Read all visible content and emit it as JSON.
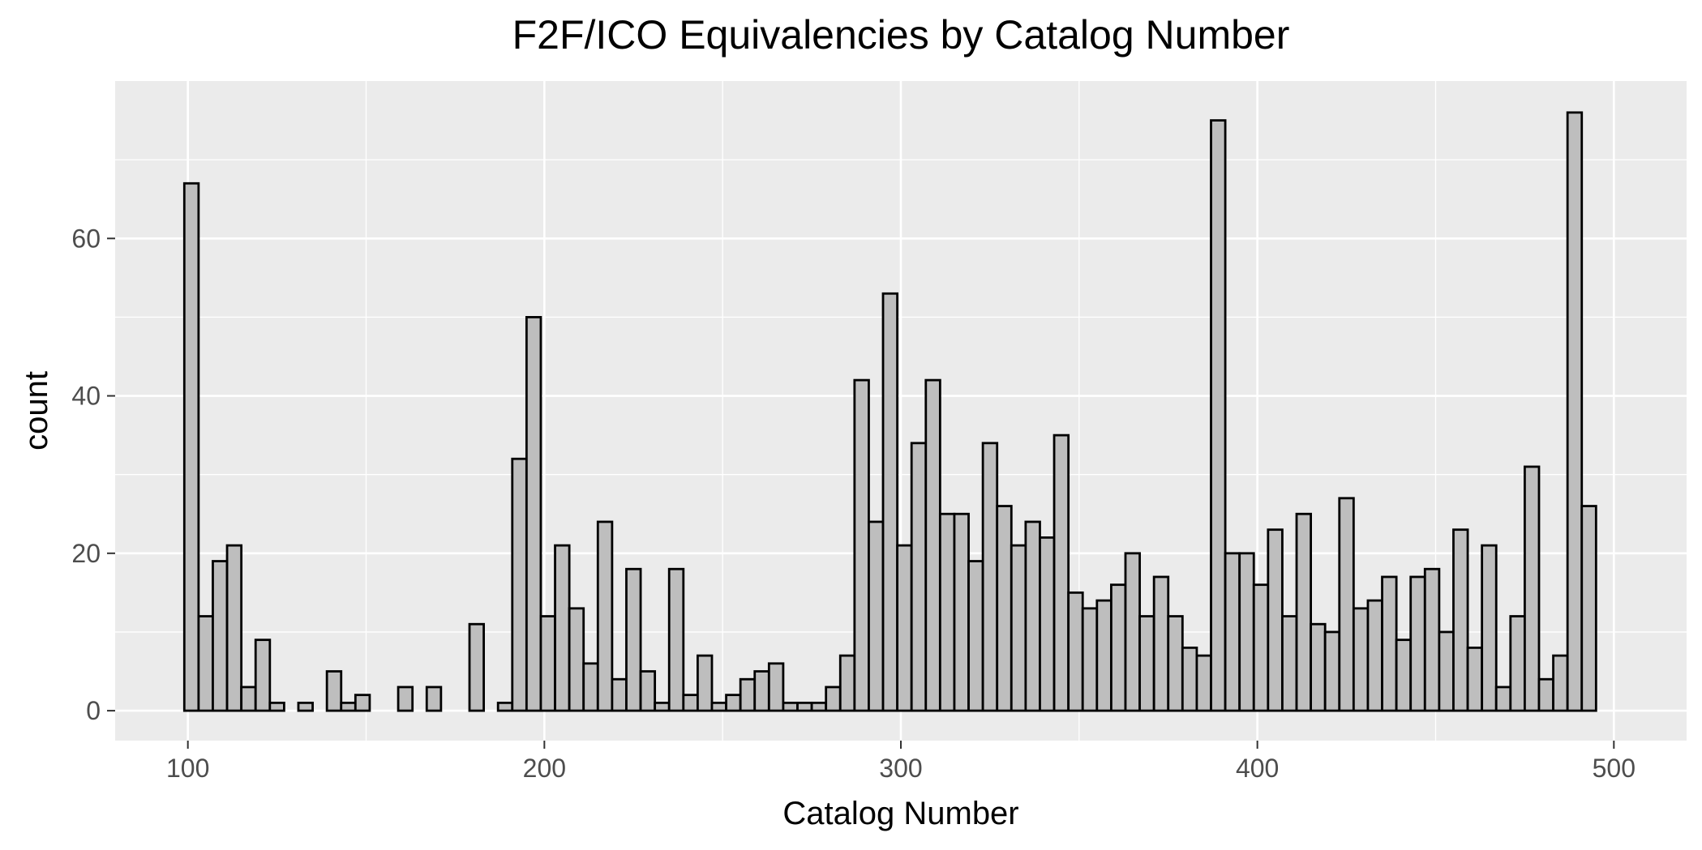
{
  "chart_data": {
    "type": "bar",
    "title": "F2F/ICO Equivalencies by Catalog Number",
    "xlabel": "Catalog Number",
    "ylabel": "count",
    "xlim": [
      79.6,
      520.4
    ],
    "ylim": [
      -3.8,
      80.0
    ],
    "x_ticks": [
      100,
      200,
      300,
      400,
      500
    ],
    "y_ticks": [
      0,
      20,
      40,
      60
    ],
    "x_tick_labels": [
      "100",
      "200",
      "300",
      "400",
      "500"
    ],
    "y_tick_labels": [
      "0",
      "20",
      "40",
      "60"
    ],
    "grid": true,
    "legend": "none",
    "bin_start": 99,
    "bin_width": 4,
    "values": [
      67,
      12,
      19,
      21,
      3,
      9,
      1,
      0,
      1,
      0,
      5,
      1,
      2,
      0,
      0,
      3,
      0,
      3,
      0,
      0,
      11,
      0,
      1,
      32,
      50,
      12,
      21,
      13,
      6,
      24,
      4,
      18,
      5,
      1,
      18,
      2,
      7,
      1,
      2,
      4,
      5,
      6,
      1,
      1,
      1,
      3,
      7,
      42,
      24,
      53,
      21,
      34,
      42,
      25,
      25,
      19,
      34,
      26,
      21,
      24,
      22,
      35,
      15,
      13,
      14,
      16,
      20,
      12,
      17,
      12,
      8,
      7,
      75,
      20,
      20,
      16,
      23,
      12,
      25,
      11,
      10,
      27,
      13,
      14,
      17,
      9,
      17,
      18,
      10,
      23,
      8,
      21,
      3,
      12,
      31,
      4,
      7,
      76,
      26
    ],
    "colors": {
      "panel": "#ebebeb",
      "bar_fill": "#bebebe",
      "bar_stroke": "#000000"
    }
  }
}
